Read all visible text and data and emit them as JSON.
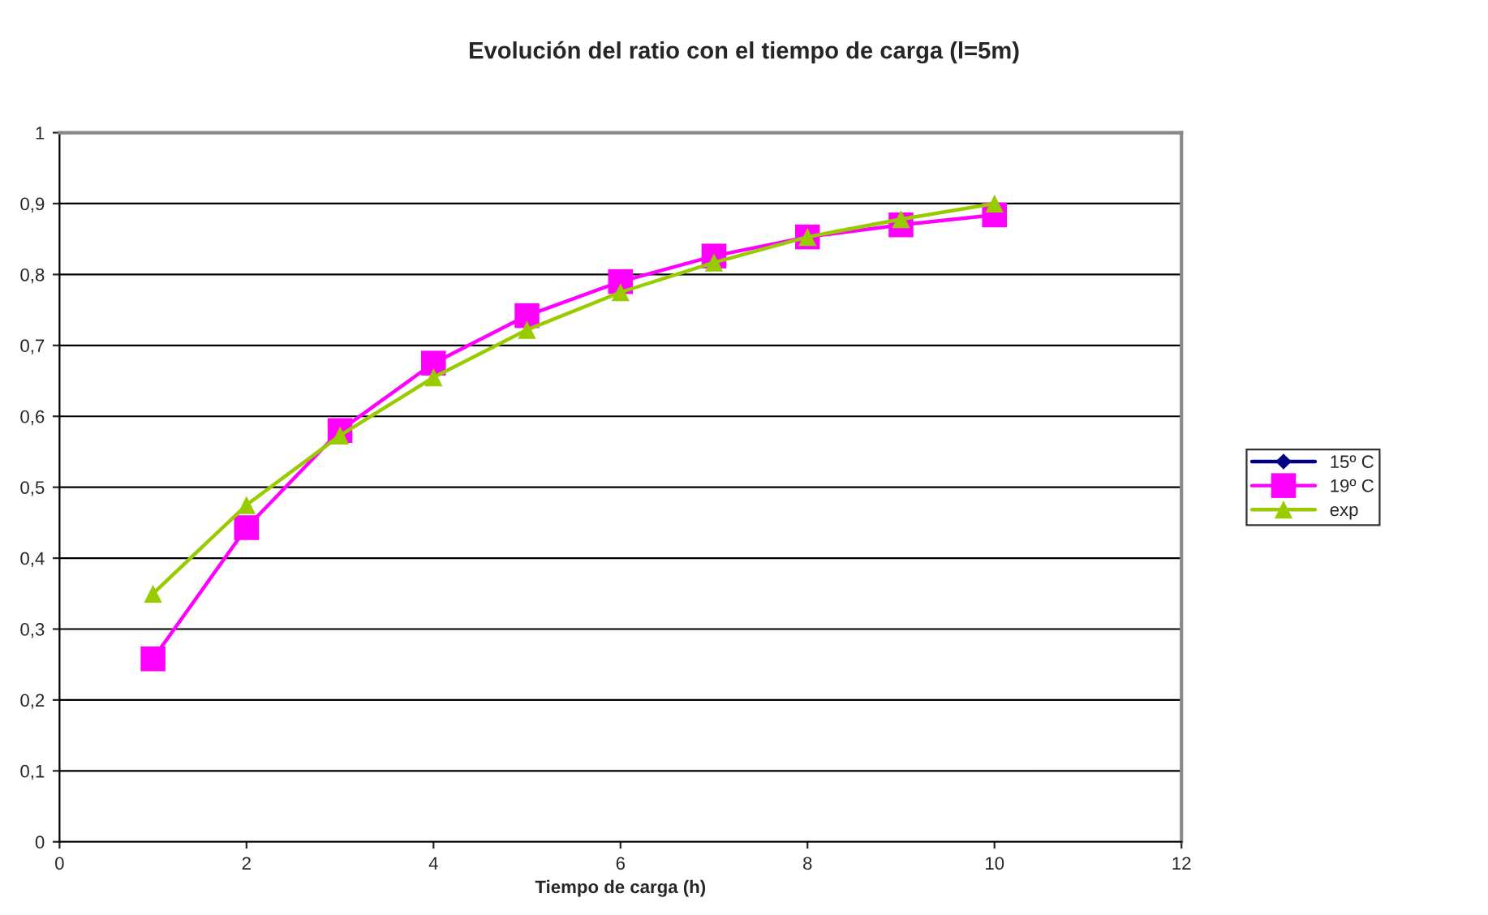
{
  "chart_data": {
    "type": "line",
    "title": "Evolución del ratio con el tiempo de carga (l=5m)",
    "xlabel": "Tiempo de carga (h)",
    "x": [
      1,
      2,
      3,
      4,
      5,
      6,
      7,
      8,
      9,
      10
    ],
    "series": [
      {
        "name": "15º C",
        "color": "#000080",
        "marker": "diamond",
        "values": [
          null,
          null,
          null,
          null,
          null,
          null,
          null,
          null,
          null,
          null
        ]
      },
      {
        "name": "19º C",
        "color": "#ff00ff",
        "marker": "square",
        "values": [
          0.258,
          0.443,
          0.58,
          0.675,
          0.742,
          0.79,
          0.826,
          0.853,
          0.87,
          0.884
        ]
      },
      {
        "name": "exp",
        "color": "#99cc00",
        "marker": "triangle",
        "values": [
          0.35,
          0.475,
          0.573,
          0.655,
          0.722,
          0.775,
          0.817,
          0.853,
          0.878,
          0.9
        ]
      }
    ],
    "xlim": [
      0,
      12
    ],
    "xticks": [
      0,
      2,
      4,
      6,
      8,
      10,
      12
    ],
    "ylim": [
      0,
      1
    ],
    "yticks": [
      0,
      {
        "value": 0.1,
        "label": "0,1"
      },
      {
        "value": 0.2,
        "label": "0,2"
      },
      {
        "value": 0.3,
        "label": "0,3"
      },
      {
        "value": 0.4,
        "label": "0,4"
      },
      {
        "value": 0.5,
        "label": "0,5"
      },
      {
        "value": 0.6,
        "label": "0,6"
      },
      {
        "value": 0.7,
        "label": "0,7"
      },
      {
        "value": 0.8,
        "label": "0,8"
      },
      {
        "value": 0.9,
        "label": "0,9"
      },
      1
    ],
    "grid": "y",
    "legend": "right"
  }
}
